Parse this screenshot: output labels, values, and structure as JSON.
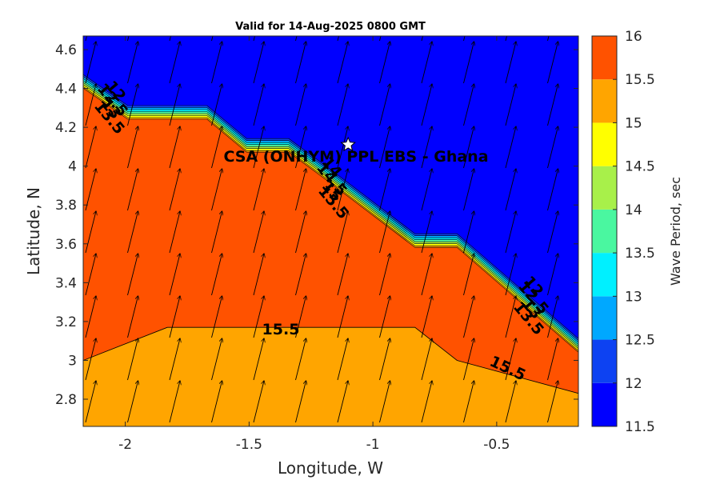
{
  "title": "Valid for 14-Aug-2025 0800 GMT",
  "site_label": "CSA (ONHYM) PPL EBS  - Ghana",
  "axes": {
    "xlabel": "Longitude, W",
    "ylabel": "Latitude, N",
    "xlim": [
      -2.17,
      -0.17
    ],
    "ylim": [
      2.66,
      4.67
    ],
    "xticks": [
      "-2",
      "-1.5",
      "-1",
      "-0.5"
    ],
    "xtick_values": [
      -2,
      -1.5,
      -1,
      -0.5
    ],
    "yticks": [
      "2.8",
      "3",
      "3.2",
      "3.4",
      "3.6",
      "3.8",
      "4",
      "4.2",
      "4.4",
      "4.6"
    ],
    "ytick_values": [
      2.8,
      3.0,
      3.2,
      3.4,
      3.6,
      3.8,
      4.0,
      4.2,
      4.4,
      4.6
    ]
  },
  "colorbar": {
    "label": "Wave Period, sec",
    "ticks": [
      "16",
      "15.5",
      "15",
      "14.5",
      "14",
      "13.5",
      "13",
      "12.5",
      "12",
      "11.5"
    ],
    "levels": [
      11.5,
      12,
      12.5,
      13,
      13.5,
      14,
      14.5,
      15,
      15.5,
      16
    ],
    "colors": [
      "#0000ff",
      "#0d42f2",
      "#00a8ff",
      "#00f0ff",
      "#4af7a0",
      "#a8f04a",
      "#ffff00",
      "#ffa500",
      "#ff5200"
    ]
  },
  "chart_data": {
    "type": "contour-map",
    "title": "Valid for 14-Aug-2025 0800 GMT",
    "xlabel": "Longitude, W",
    "ylabel": "Latitude, N",
    "xlim": [
      -2.17,
      -0.17
    ],
    "ylim": [
      2.66,
      4.67
    ],
    "site": {
      "name": "CSA (ONHYM) PPL EBS  - Ghana",
      "lon": -1.1,
      "lat": 4.11
    },
    "shelf_edge_top": {
      "lon": [
        -2.17,
        -1.99,
        -1.67,
        -1.51,
        -1.34,
        -1.18,
        -0.83,
        -0.66,
        -0.17
      ],
      "lat": [
        4.48,
        4.32,
        4.32,
        4.15,
        4.15,
        4.0,
        3.66,
        3.66,
        3.12
      ]
    },
    "band_16_lower": {
      "lon": [
        -2.17,
        -1.83,
        -1.34,
        -1.18,
        -0.83,
        -0.66,
        -0.17
      ],
      "lat": [
        3.0,
        3.17,
        3.17,
        3.17,
        3.17,
        3.0,
        2.83
      ]
    },
    "contour_labels": [
      "12",
      "12.5",
      "13",
      "13.5",
      "14",
      "14.5",
      "15",
      "15.5",
      "15.5",
      "15.5"
    ],
    "wave_direction": "toward NNE"
  }
}
